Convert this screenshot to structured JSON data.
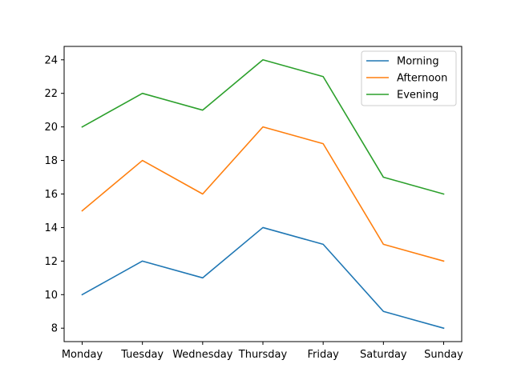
{
  "chart_data": {
    "type": "line",
    "title": "",
    "xlabel": "",
    "ylabel": "",
    "categories": [
      "Monday",
      "Tuesday",
      "Wednesday",
      "Thursday",
      "Friday",
      "Saturday",
      "Sunday"
    ],
    "ylim": [
      7.2,
      24.8
    ],
    "yticks": [
      8,
      10,
      12,
      14,
      16,
      18,
      20,
      22,
      24
    ],
    "grid": false,
    "legend_position": "top-right",
    "series": [
      {
        "name": "Morning",
        "color": "#1f77b4",
        "values": [
          10,
          12,
          11,
          14,
          13,
          9,
          8
        ]
      },
      {
        "name": "Afternoon",
        "color": "#ff7f0e",
        "values": [
          15,
          18,
          16,
          20,
          19,
          13,
          12
        ]
      },
      {
        "name": "Evening",
        "color": "#2ca02c",
        "values": [
          20,
          22,
          21,
          24,
          23,
          17,
          16
        ]
      }
    ]
  }
}
